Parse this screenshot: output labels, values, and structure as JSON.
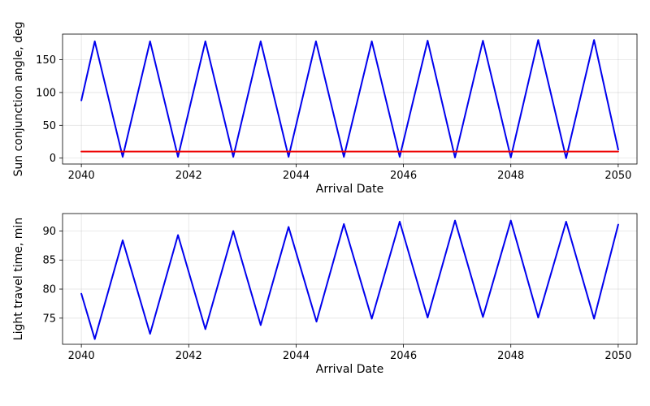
{
  "chart_data": [
    {
      "type": "line",
      "xlabel": "Arrival Date",
      "ylabel": "Sun conjunction angle, deg",
      "xlim": [
        2039.65,
        2050.35
      ],
      "ylim": [
        -9,
        189
      ],
      "xticks": [
        2040,
        2042,
        2044,
        2046,
        2048,
        2050
      ],
      "xtick_labels": [
        "2040",
        "2042",
        "2044",
        "2046",
        "2048",
        "2050"
      ],
      "yticks": [
        0,
        50,
        100,
        150
      ],
      "ytick_labels": [
        "0",
        "50",
        "100",
        "150"
      ],
      "grid": true,
      "series": [
        {
          "color": "#0000ee",
          "points": [
            [
              2040.0,
              88
            ],
            [
              2040.25,
              178
            ],
            [
              2040.77,
              2
            ],
            [
              2041.28,
              178
            ],
            [
              2041.8,
              2
            ],
            [
              2042.31,
              178
            ],
            [
              2042.83,
              2
            ],
            [
              2043.34,
              178
            ],
            [
              2043.86,
              2
            ],
            [
              2044.37,
              178
            ],
            [
              2044.89,
              2
            ],
            [
              2045.41,
              178
            ],
            [
              2045.93,
              2
            ],
            [
              2046.45,
              179
            ],
            [
              2046.96,
              1
            ],
            [
              2047.48,
              179
            ],
            [
              2048.0,
              1
            ],
            [
              2048.51,
              180
            ],
            [
              2049.03,
              0
            ],
            [
              2049.55,
              180
            ],
            [
              2050.0,
              13
            ]
          ]
        },
        {
          "color": "#ee0000",
          "points": [
            [
              2040.0,
              10
            ],
            [
              2050.0,
              10
            ]
          ]
        }
      ]
    },
    {
      "type": "line",
      "xlabel": "Arrival Date",
      "ylabel": "Light travel time, min",
      "xlim": [
        2039.65,
        2050.35
      ],
      "ylim": [
        70.5,
        93
      ],
      "xticks": [
        2040,
        2042,
        2044,
        2046,
        2048,
        2050
      ],
      "xtick_labels": [
        "2040",
        "2042",
        "2044",
        "2046",
        "2048",
        "2050"
      ],
      "yticks": [
        75,
        80,
        85,
        90
      ],
      "ytick_labels": [
        "75",
        "80",
        "85",
        "90"
      ],
      "grid": true,
      "series": [
        {
          "color": "#0000ee",
          "points": [
            [
              2040.0,
              79.2
            ],
            [
              2040.25,
              71.4
            ],
            [
              2040.77,
              88.4
            ],
            [
              2041.28,
              72.3
            ],
            [
              2041.8,
              89.3
            ],
            [
              2042.31,
              73.1
            ],
            [
              2042.83,
              90.0
            ],
            [
              2043.34,
              73.8
            ],
            [
              2043.86,
              90.7
            ],
            [
              2044.38,
              74.4
            ],
            [
              2044.89,
              91.2
            ],
            [
              2045.41,
              74.9
            ],
            [
              2045.93,
              91.6
            ],
            [
              2046.45,
              75.1
            ],
            [
              2046.96,
              91.8
            ],
            [
              2047.48,
              75.2
            ],
            [
              2048.0,
              91.8
            ],
            [
              2048.51,
              75.1
            ],
            [
              2049.03,
              91.6
            ],
            [
              2049.55,
              74.9
            ],
            [
              2050.0,
              91.1
            ]
          ]
        }
      ]
    }
  ]
}
